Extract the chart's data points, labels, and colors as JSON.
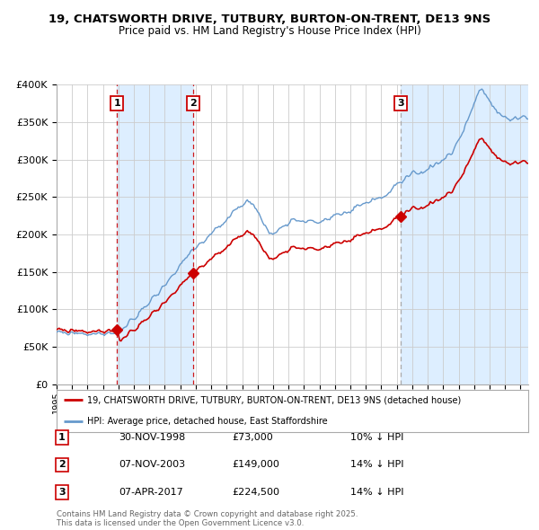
{
  "title_line1": "19, CHATSWORTH DRIVE, TUTBURY, BURTON-ON-TRENT, DE13 9NS",
  "title_line2": "Price paid vs. HM Land Registry's House Price Index (HPI)",
  "legend_label_red": "19, CHATSWORTH DRIVE, TUTBURY, BURTON-ON-TRENT, DE13 9NS (detached house)",
  "legend_label_blue": "HPI: Average price, detached house, East Staffordshire",
  "sale1_label": "1",
  "sale1_date": "30-NOV-1998",
  "sale1_price": "£73,000",
  "sale1_hpi": "10% ↓ HPI",
  "sale2_label": "2",
  "sale2_date": "07-NOV-2003",
  "sale2_price": "£149,000",
  "sale2_hpi": "14% ↓ HPI",
  "sale3_label": "3",
  "sale3_date": "07-APR-2017",
  "sale3_price": "£224,500",
  "sale3_hpi": "14% ↓ HPI",
  "footer": "Contains HM Land Registry data © Crown copyright and database right 2025.\nThis data is licensed under the Open Government Licence v3.0.",
  "ylim": [
    0,
    400000
  ],
  "yticks": [
    0,
    50000,
    100000,
    150000,
    200000,
    250000,
    300000,
    350000,
    400000
  ],
  "sale1_year": 1998.92,
  "sale1_price_val": 73000,
  "sale2_year": 2003.85,
  "sale2_price_val": 149000,
  "sale3_year": 2017.27,
  "sale3_price_val": 224500,
  "xmin": 1995.0,
  "xmax": 2025.5,
  "red_color": "#cc0000",
  "blue_color": "#6699cc",
  "vline_red_color": "#cc0000",
  "vline_gray_color": "#aaaaaa",
  "shade_color": "#ddeeff",
  "background_color": "#ffffff",
  "grid_color": "#cccccc",
  "box_color": "#cc0000"
}
